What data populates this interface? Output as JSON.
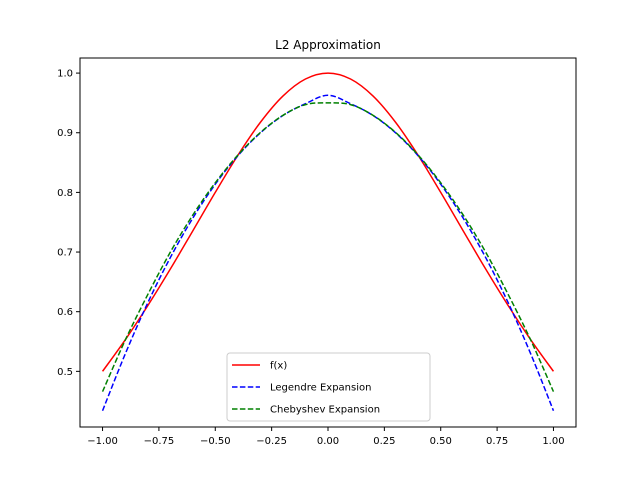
{
  "chart_data": {
    "type": "line",
    "title": "L2 Approximation",
    "xlabel": "",
    "ylabel": "",
    "xlim": [
      -1.1,
      1.1
    ],
    "ylim": [
      0.4067,
      1.0253
    ],
    "xticks": [
      {
        "value": -1.0,
        "label": "−1.00"
      },
      {
        "value": -0.75,
        "label": "−0.75"
      },
      {
        "value": -0.5,
        "label": "−0.50"
      },
      {
        "value": -0.25,
        "label": "−0.25"
      },
      {
        "value": 0.0,
        "label": "0.00"
      },
      {
        "value": 0.25,
        "label": "0.25"
      },
      {
        "value": 0.5,
        "label": "0.50"
      },
      {
        "value": 0.75,
        "label": "0.75"
      },
      {
        "value": 1.0,
        "label": "1.00"
      }
    ],
    "yticks": [
      {
        "value": 0.5,
        "label": "0.5"
      },
      {
        "value": 0.6,
        "label": "0.6"
      },
      {
        "value": 0.7,
        "label": "0.7"
      },
      {
        "value": 0.8,
        "label": "0.8"
      },
      {
        "value": 0.9,
        "label": "0.9"
      },
      {
        "value": 1.0,
        "label": "1.0"
      }
    ],
    "grid": false,
    "legend_position": "lower center",
    "x": [
      -1.0,
      -0.9,
      -0.8,
      -0.7,
      -0.6,
      -0.5,
      -0.4,
      -0.3,
      -0.2,
      -0.1,
      0.0,
      0.1,
      0.2,
      0.3,
      0.4,
      0.5,
      0.6,
      0.7,
      0.8,
      0.9,
      1.0
    ],
    "series": [
      {
        "name": "f(x)",
        "color": "#ff0000",
        "style": "solid",
        "values": [
          0.5,
          0.5525,
          0.6098,
          0.6711,
          0.7353,
          0.8,
          0.8621,
          0.9174,
          0.9615,
          0.9901,
          1.0,
          0.9901,
          0.9615,
          0.9174,
          0.8621,
          0.8,
          0.7353,
          0.6711,
          0.6098,
          0.5525,
          0.5
        ]
      },
      {
        "name": "Legendre Expansion",
        "color": "#0000ff",
        "style": "dashed",
        "values": [
          0.434,
          0.5286,
          0.6144,
          0.6903,
          0.7567,
          0.8137,
          0.8613,
          0.8998,
          0.9289,
          0.9487,
          0.9628,
          0.9487,
          0.9289,
          0.8998,
          0.8613,
          0.8137,
          0.7567,
          0.6903,
          0.6144,
          0.5286,
          0.434
        ]
      },
      {
        "name": "Chebyshev Expansion",
        "color": "#008000",
        "style": "dashed",
        "values": [
          0.466,
          0.5518,
          0.6283,
          0.6994,
          0.7618,
          0.8161,
          0.8625,
          0.9004,
          0.9291,
          0.9472,
          0.95,
          0.9472,
          0.9291,
          0.9004,
          0.8625,
          0.8161,
          0.7618,
          0.6994,
          0.6283,
          0.5518,
          0.466
        ]
      }
    ]
  }
}
